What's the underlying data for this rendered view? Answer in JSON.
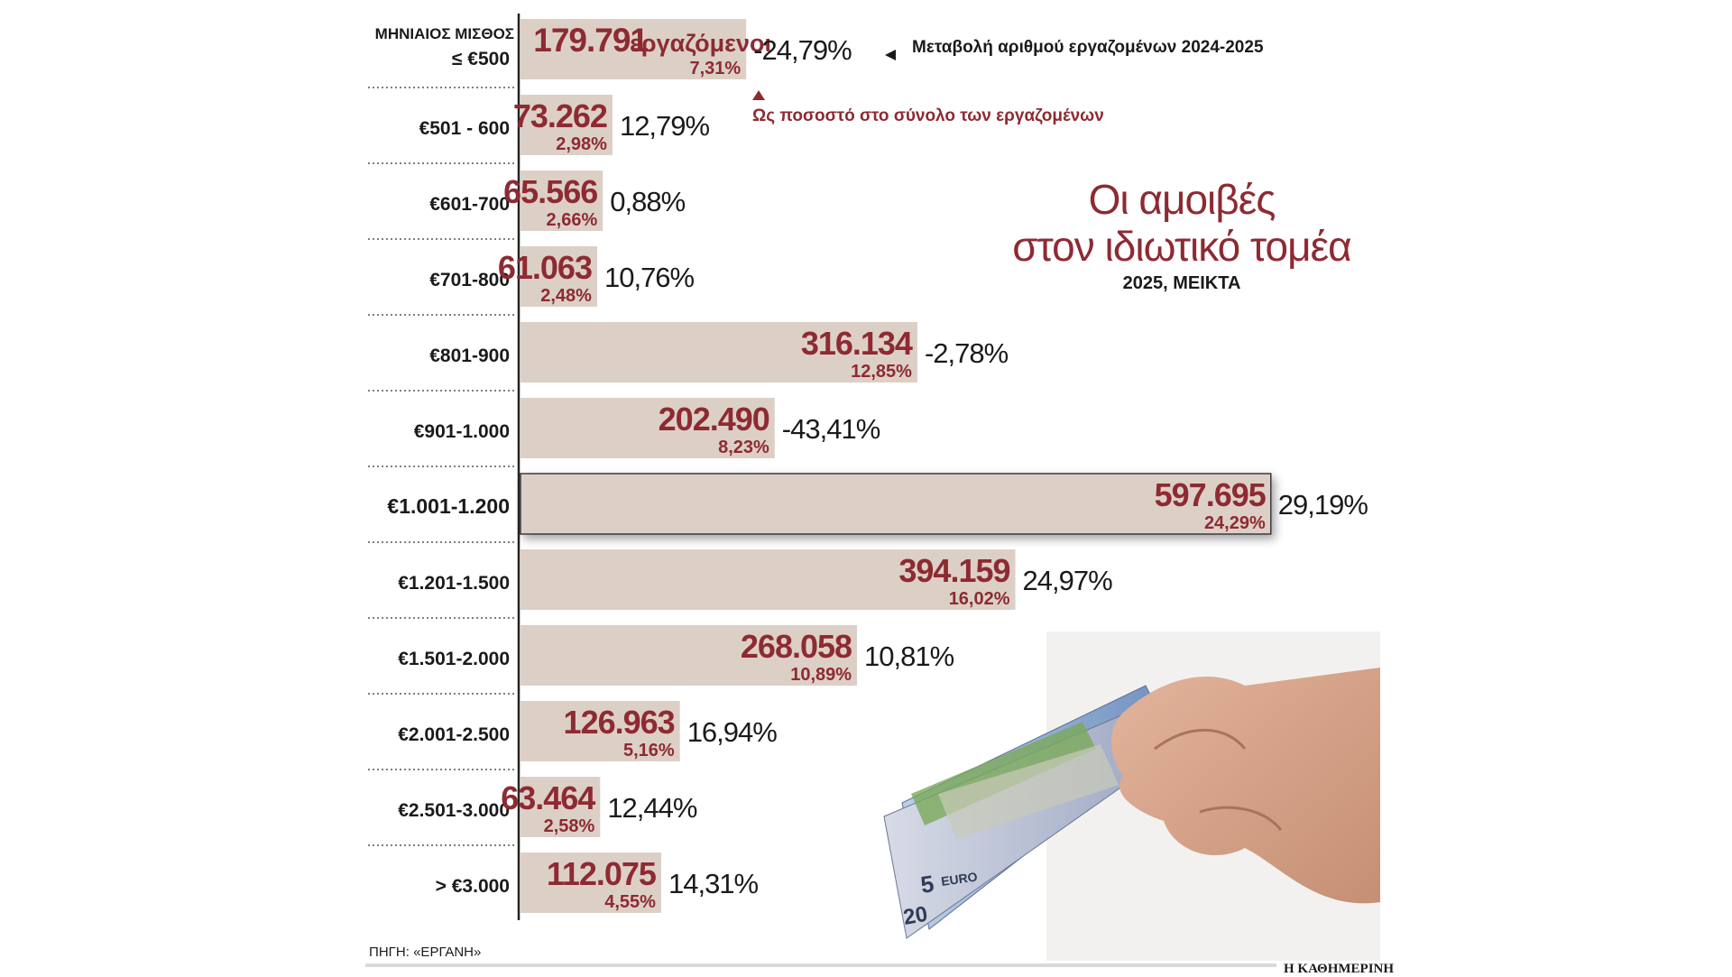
{
  "chart_data": {
    "type": "bar",
    "orientation": "horizontal",
    "title": "Οι αμοιβές στον ιδιωτικό τομέα",
    "title_lines": [
      "Οι αμοιβές",
      "στον ιδιωτικό τομέα"
    ],
    "subtitle": "2025, ΜΕΙΚΤΑ",
    "category_header": "ΜΗΝΙΑΙΟΣ ΜΙΣΘΟΣ",
    "categories": [
      "≤ €500",
      "€501 - 600",
      "€601-700",
      "€701-800",
      "€801-900",
      "€901-1.000",
      "€1.001-1.200",
      "€1.201-1.500",
      "€1.501-2.000",
      "€2.001-2.500",
      "€2.501-3.000",
      "> €3.000"
    ],
    "series": [
      {
        "values": [
          179791,
          73262,
          65566,
          61063,
          316134,
          202490,
          597695,
          394159,
          268058,
          126963,
          63464,
          112075
        ]
      }
    ],
    "value_labels": [
      "179.791",
      "73.262",
      "65.566",
      "61.063",
      "316.134",
      "202.490",
      "597.695",
      "394.159",
      "268.058",
      "126.963",
      "63.464",
      "112.075"
    ],
    "share_labels": [
      "7,31%",
      "2,98%",
      "2,66%",
      "2,48%",
      "12,85%",
      "8,23%",
      "24,29%",
      "16,02%",
      "10,89%",
      "5,16%",
      "2,58%",
      "4,55%"
    ],
    "change_labels": [
      "-24,79%",
      "12,79%",
      "0,88%",
      "10,76%",
      "-2,78%",
      "-43,41%",
      "29,19%",
      "24,97%",
      "10,81%",
      "16,94%",
      "12,44%",
      "14,31%"
    ],
    "first_value_unit": "εργαζόμενοι",
    "highlight_index": 6,
    "xlim": [
      0,
      600000
    ],
    "grid": false,
    "colors": {
      "bar": "#dcd0c6",
      "value_text": "#8e2a32",
      "text": "#1a1a1a",
      "highlight_border": "#3a3a3a"
    }
  },
  "annotations": {
    "change_note": "Μεταβολή αριθμού εργαζομένων 2024-2025",
    "share_note": "Ως ποσοστό στο σύνολο των εργαζομένων"
  },
  "footer": {
    "source": "ΠΗΓΗ: «ΕΡΓΑΝΗ»",
    "brand": "Η ΚΑΘΗΜΕΡΙΝΗ"
  },
  "decor": {
    "image": "hand-holding-euro-banknotes"
  }
}
